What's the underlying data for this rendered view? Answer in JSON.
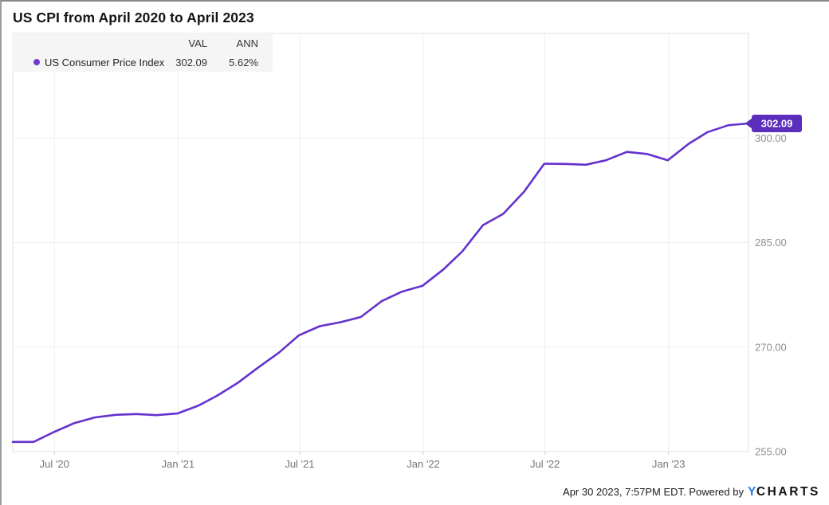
{
  "page": {
    "title": "US CPI from April 2020 to April 2023",
    "footer": {
      "timestamp": "Apr 30 2023, 7:57PM EDT.",
      "powered_by": "Powered by",
      "brand_y": "Y",
      "brand_rest": "CHARTS"
    }
  },
  "legend": {
    "columns": [
      "VAL",
      "ANN"
    ],
    "series_label": "US Consumer Price Index",
    "val": "302.09",
    "ann": "5.62%"
  },
  "colors": {
    "line": "#6432cd",
    "legend_dot": "#7237d2",
    "tag_bg": "#5b2ebc",
    "tag_text": "#ffffff",
    "grid": "#efefef",
    "plot_border": "#e2e2e2",
    "tick": "#cfcfcf",
    "y_axis_text": "#8e8e8e",
    "x_axis_text": "#757575",
    "brand_blue": "#2b7de0"
  },
  "chart_data": {
    "type": "line",
    "title": "US CPI from April 2020 to April 2023",
    "grid": true,
    "legend_position": "top-left",
    "x_range": [
      "2020-04-30",
      "2023-04-30"
    ],
    "y_range": [
      255,
      315
    ],
    "y_ticks": [
      255,
      270,
      285,
      300
    ],
    "y_tick_labels": [
      "255.00",
      "270.00",
      "285.00",
      "300.00"
    ],
    "x_ticks": [
      {
        "label": "Jul '20",
        "date": "2020-07-01"
      },
      {
        "label": "Jan '21",
        "date": "2021-01-01"
      },
      {
        "label": "Jul '21",
        "date": "2021-07-01"
      },
      {
        "label": "Jan '22",
        "date": "2022-01-01"
      },
      {
        "label": "Jul '22",
        "date": "2022-07-01"
      },
      {
        "label": "Jan '23",
        "date": "2023-01-01"
      }
    ],
    "last_value_label": "302.09",
    "series": [
      {
        "name": "US Consumer Price Index",
        "dates": [
          "2020-04-30",
          "2020-05-31",
          "2020-06-30",
          "2020-07-31",
          "2020-08-31",
          "2020-09-30",
          "2020-10-31",
          "2020-11-30",
          "2020-12-31",
          "2021-01-31",
          "2021-02-28",
          "2021-03-31",
          "2021-04-30",
          "2021-05-31",
          "2021-06-30",
          "2021-07-31",
          "2021-08-31",
          "2021-09-30",
          "2021-10-31",
          "2021-11-30",
          "2021-12-31",
          "2022-01-31",
          "2022-02-28",
          "2022-03-31",
          "2022-04-30",
          "2022-05-31",
          "2022-06-30",
          "2022-07-31",
          "2022-08-31",
          "2022-09-30",
          "2022-10-31",
          "2022-11-30",
          "2022-12-31",
          "2023-01-31",
          "2023-02-28",
          "2023-03-31",
          "2023-04-30"
        ],
        "values": [
          256.39,
          256.39,
          257.8,
          259.1,
          259.92,
          260.28,
          260.39,
          260.23,
          260.47,
          261.58,
          263.01,
          264.88,
          267.05,
          269.2,
          271.7,
          273.0,
          273.57,
          274.31,
          276.59,
          277.95,
          278.8,
          281.15,
          283.72,
          287.5,
          289.11,
          292.3,
          296.31,
          296.28,
          296.17,
          296.81,
          298.01,
          297.71,
          296.8,
          299.17,
          300.84,
          301.84,
          302.09
        ]
      }
    ]
  }
}
